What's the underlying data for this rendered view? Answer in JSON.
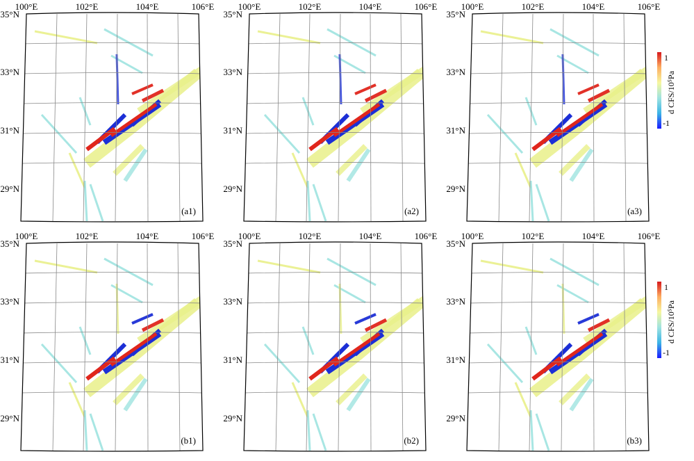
{
  "panels": [
    {
      "id": "a1",
      "label": "(a1)",
      "colorbar": false,
      "variant": "a"
    },
    {
      "id": "a2",
      "label": "(a2)",
      "colorbar": false,
      "variant": "a"
    },
    {
      "id": "a3",
      "label": "(a3)",
      "colorbar": true,
      "variant": "a"
    },
    {
      "id": "b1",
      "label": "(b1)",
      "colorbar": false,
      "variant": "b"
    },
    {
      "id": "b2",
      "label": "(b2)",
      "colorbar": false,
      "variant": "b"
    },
    {
      "id": "b3",
      "label": "(b3)",
      "colorbar": true,
      "variant": "b"
    }
  ],
  "lon_labels": [
    "100°E",
    "102°E",
    "104°E",
    "106°E"
  ],
  "lat_labels": [
    "35°N",
    "33°N",
    "31°N",
    "29°N"
  ],
  "colorbar": {
    "title": "d CFS/10⁵Pa",
    "ticks": [
      "1",
      "-1"
    ],
    "colors": [
      "#d7191c",
      "#f46d43",
      "#fdae61",
      "#fee08b",
      "#e6f598",
      "#abdda4",
      "#66c2a5",
      "#3288bd",
      "#1a1aff"
    ]
  },
  "colors": {
    "red": "#e0261c",
    "blue": "#1c2fd6",
    "yellow": "#e9f08a",
    "cyan": "#9fe3e0",
    "grid": "#888888"
  }
}
